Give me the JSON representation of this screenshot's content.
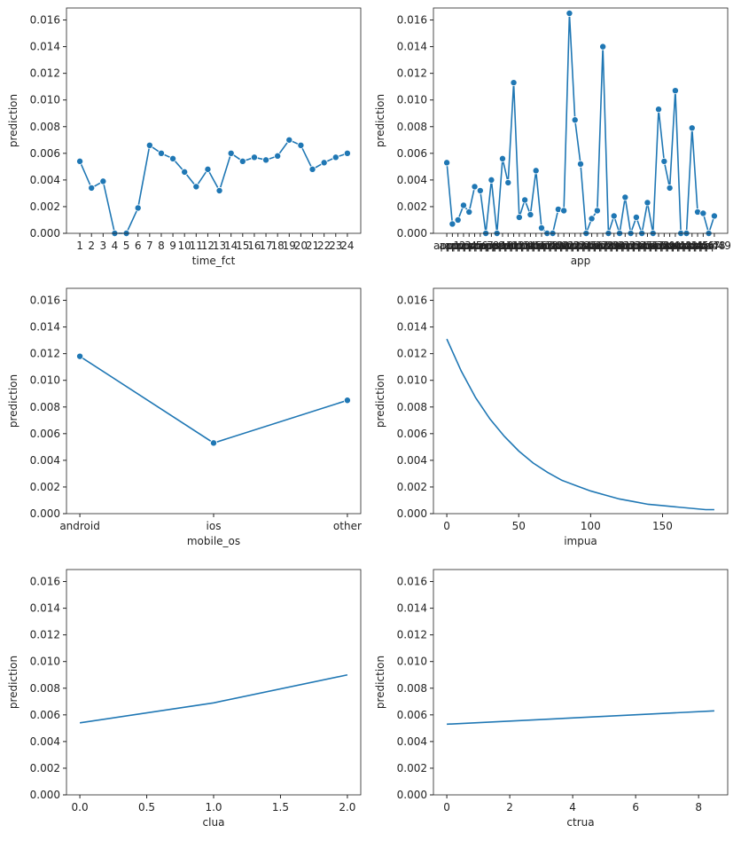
{
  "chart_data": [
    {
      "type": "line",
      "markers": true,
      "color": "#1f77b4",
      "xlabel": "time_fct",
      "ylabel": "prediction",
      "categories": [
        "1",
        "2",
        "3",
        "4",
        "5",
        "6",
        "7",
        "8",
        "9",
        "10",
        "11",
        "12",
        "13",
        "14",
        "15",
        "16",
        "17",
        "18",
        "19",
        "20",
        "21",
        "22",
        "23",
        "24"
      ],
      "values": [
        0.0054,
        0.0034,
        0.0039,
        0.0,
        0.0,
        0.0019,
        0.0066,
        0.006,
        0.0056,
        0.0046,
        0.0035,
        0.0048,
        0.0032,
        0.006,
        0.0054,
        0.0057,
        0.0055,
        0.0058,
        0.007,
        0.0066,
        0.0048,
        0.0053,
        0.0057,
        0.006
      ],
      "ylim": [
        0,
        0.0169
      ],
      "yticks": [
        {
          "value": 0,
          "label": "0.000"
        },
        {
          "value": 0.002,
          "label": "0.002"
        },
        {
          "value": 0.004,
          "label": "0.004"
        },
        {
          "value": 0.006,
          "label": "0.006"
        },
        {
          "value": 0.008,
          "label": "0.008"
        },
        {
          "value": 0.01,
          "label": "0.010"
        },
        {
          "value": 0.012,
          "label": "0.012"
        },
        {
          "value": 0.014,
          "label": "0.014"
        },
        {
          "value": 0.016,
          "label": "0.016"
        }
      ]
    },
    {
      "type": "line",
      "markers": true,
      "color": "#1f77b4",
      "xlabel": "app",
      "ylabel": "prediction",
      "categories": [
        "app1",
        "app2",
        "app3",
        "app4",
        "app5",
        "app6",
        "app7",
        "app8",
        "app9",
        "app10",
        "app11",
        "app12",
        "app13",
        "app14",
        "app15",
        "app16",
        "app17",
        "app18",
        "app19",
        "app20",
        "app21",
        "app22",
        "app23",
        "app24",
        "app25",
        "app26",
        "app27",
        "app28",
        "app29",
        "app30",
        "app31",
        "app32",
        "app33",
        "app34",
        "app35",
        "app36",
        "app37",
        "app38",
        "app39",
        "app40",
        "app41",
        "app42",
        "app43",
        "app44",
        "app45",
        "app46",
        "app47",
        "app48",
        "app49"
      ],
      "values": [
        0.0053,
        0.0007,
        0.001,
        0.0021,
        0.0016,
        0.0035,
        0.0032,
        0.0,
        0.004,
        0.0,
        0.0056,
        0.0038,
        0.0113,
        0.0012,
        0.0025,
        0.0014,
        0.0047,
        0.0004,
        0.0,
        0.0,
        0.0018,
        0.0017,
        0.0165,
        0.0085,
        0.0052,
        0.0,
        0.0011,
        0.0017,
        0.014,
        0.0,
        0.0013,
        0.0,
        0.0027,
        0.0,
        0.0012,
        0.0,
        0.0023,
        0.0,
        0.0093,
        0.0054,
        0.0034,
        0.0107,
        0.0,
        0.0,
        0.0079,
        0.0016,
        0.0015,
        0.0,
        0.0013
      ],
      "ylim": [
        0,
        0.0169
      ],
      "yticks": [
        {
          "value": 0,
          "label": "0.000"
        },
        {
          "value": 0.002,
          "label": "0.002"
        },
        {
          "value": 0.004,
          "label": "0.004"
        },
        {
          "value": 0.006,
          "label": "0.006"
        },
        {
          "value": 0.008,
          "label": "0.008"
        },
        {
          "value": 0.01,
          "label": "0.010"
        },
        {
          "value": 0.012,
          "label": "0.012"
        },
        {
          "value": 0.014,
          "label": "0.014"
        },
        {
          "value": 0.016,
          "label": "0.016"
        }
      ]
    },
    {
      "type": "line",
      "markers": true,
      "color": "#1f77b4",
      "xlabel": "mobile_os",
      "ylabel": "prediction",
      "categories": [
        "android",
        "ios",
        "other"
      ],
      "values": [
        0.0118,
        0.0053,
        0.0085
      ],
      "ylim": [
        0,
        0.0169
      ],
      "yticks": [
        {
          "value": 0,
          "label": "0.000"
        },
        {
          "value": 0.002,
          "label": "0.002"
        },
        {
          "value": 0.004,
          "label": "0.004"
        },
        {
          "value": 0.006,
          "label": "0.006"
        },
        {
          "value": 0.008,
          "label": "0.008"
        },
        {
          "value": 0.01,
          "label": "0.010"
        },
        {
          "value": 0.012,
          "label": "0.012"
        },
        {
          "value": 0.014,
          "label": "0.014"
        },
        {
          "value": 0.016,
          "label": "0.016"
        }
      ]
    },
    {
      "type": "line",
      "markers": false,
      "color": "#1f77b4",
      "xlabel": "impua",
      "ylabel": "prediction",
      "x": [
        0,
        10,
        20,
        30,
        40,
        50,
        60,
        70,
        80,
        90,
        100,
        110,
        120,
        130,
        140,
        150,
        160,
        170,
        180,
        186
      ],
      "values": [
        0.0131,
        0.0107,
        0.0087,
        0.0071,
        0.0058,
        0.0047,
        0.0038,
        0.0031,
        0.0025,
        0.0021,
        0.0017,
        0.0014,
        0.0011,
        0.0009,
        0.0007,
        0.0006,
        0.0005,
        0.0004,
        0.0003,
        0.0003
      ],
      "xlim": [
        -9.3,
        195.3
      ],
      "xticks": [
        0,
        50,
        100,
        150
      ],
      "ylim": [
        0,
        0.0169
      ],
      "yticks": [
        {
          "value": 0,
          "label": "0.000"
        },
        {
          "value": 0.002,
          "label": "0.002"
        },
        {
          "value": 0.004,
          "label": "0.004"
        },
        {
          "value": 0.006,
          "label": "0.006"
        },
        {
          "value": 0.008,
          "label": "0.008"
        },
        {
          "value": 0.01,
          "label": "0.010"
        },
        {
          "value": 0.012,
          "label": "0.012"
        },
        {
          "value": 0.014,
          "label": "0.014"
        },
        {
          "value": 0.016,
          "label": "0.016"
        }
      ]
    },
    {
      "type": "line",
      "markers": false,
      "color": "#1f77b4",
      "xlabel": "clua",
      "ylabel": "prediction",
      "x": [
        0,
        1,
        2
      ],
      "values": [
        0.0054,
        0.0069,
        0.009
      ],
      "xlim": [
        -0.1,
        2.1
      ],
      "xticks": [
        {
          "value": 0,
          "label": "0.0"
        },
        {
          "value": 0.5,
          "label": "0.5"
        },
        {
          "value": 1,
          "label": "1.0"
        },
        {
          "value": 1.5,
          "label": "1.5"
        },
        {
          "value": 2,
          "label": "2.0"
        }
      ],
      "ylim": [
        0,
        0.0169
      ],
      "yticks": [
        {
          "value": 0,
          "label": "0.000"
        },
        {
          "value": 0.002,
          "label": "0.002"
        },
        {
          "value": 0.004,
          "label": "0.004"
        },
        {
          "value": 0.006,
          "label": "0.006"
        },
        {
          "value": 0.008,
          "label": "0.008"
        },
        {
          "value": 0.01,
          "label": "0.010"
        },
        {
          "value": 0.012,
          "label": "0.012"
        },
        {
          "value": 0.014,
          "label": "0.014"
        },
        {
          "value": 0.016,
          "label": "0.016"
        }
      ]
    },
    {
      "type": "line",
      "markers": false,
      "color": "#1f77b4",
      "xlabel": "ctrua",
      "ylabel": "prediction",
      "x": [
        0,
        8.5
      ],
      "values": [
        0.0053,
        0.0063
      ],
      "xlim": [
        -0.425,
        8.925
      ],
      "xticks": [
        0,
        2,
        4,
        6,
        8
      ],
      "ylim": [
        0,
        0.0169
      ],
      "yticks": [
        {
          "value": 0,
          "label": "0.000"
        },
        {
          "value": 0.002,
          "label": "0.002"
        },
        {
          "value": 0.004,
          "label": "0.004"
        },
        {
          "value": 0.006,
          "label": "0.006"
        },
        {
          "value": 0.008,
          "label": "0.008"
        },
        {
          "value": 0.01,
          "label": "0.010"
        },
        {
          "value": 0.012,
          "label": "0.012"
        },
        {
          "value": 0.014,
          "label": "0.014"
        },
        {
          "value": 0.016,
          "label": "0.016"
        }
      ]
    }
  ]
}
